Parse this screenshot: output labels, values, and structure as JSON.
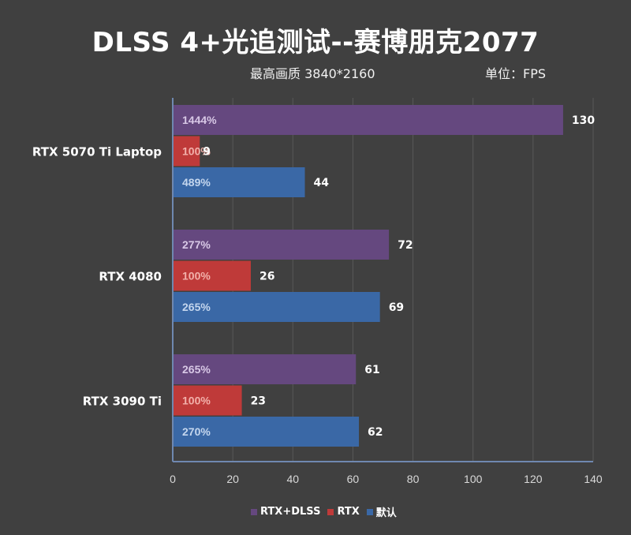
{
  "header": {
    "title": "DLSS 4+光追测试--赛博朋克2077",
    "subtitle": "最高画质 3840*2160",
    "unit": "单位：FPS"
  },
  "colors": {
    "background": "#404040",
    "grid": "#595959",
    "axis": "#6f88b0",
    "series": {
      "RTX+DLSS": "#65487f",
      "RTX": "#bf3a39",
      "默认": "#3a68a6"
    },
    "pct_label": {
      "RTX+DLSS": "#d8c8e6",
      "RTX": "#f2b0aa",
      "默认": "#c4d6ee"
    }
  },
  "chart_data": {
    "type": "bar",
    "orientation": "horizontal",
    "title": "DLSS 4+光追测试--赛博朋克2077",
    "subtitle": "最高画质 3840*2160",
    "xlabel": "",
    "ylabel": "",
    "unit": "FPS",
    "xlim": [
      0,
      140
    ],
    "xticks": [
      0,
      20,
      40,
      60,
      80,
      100,
      120,
      140
    ],
    "grid": true,
    "legend_position": "bottom",
    "categories": [
      "RTX 5070 Ti Laptop",
      "RTX 4080",
      "RTX 3090 Ti"
    ],
    "series": [
      {
        "name": "RTX+DLSS",
        "values": [
          130,
          72,
          61
        ],
        "percent_labels": [
          "1444%",
          "277%",
          "265%"
        ]
      },
      {
        "name": "RTX",
        "values": [
          9,
          26,
          23
        ],
        "percent_labels": [
          "100%",
          "100%",
          "100%"
        ]
      },
      {
        "name": "默认",
        "values": [
          44,
          69,
          62
        ],
        "percent_labels": [
          "489%",
          "265%",
          "270%"
        ]
      }
    ]
  }
}
